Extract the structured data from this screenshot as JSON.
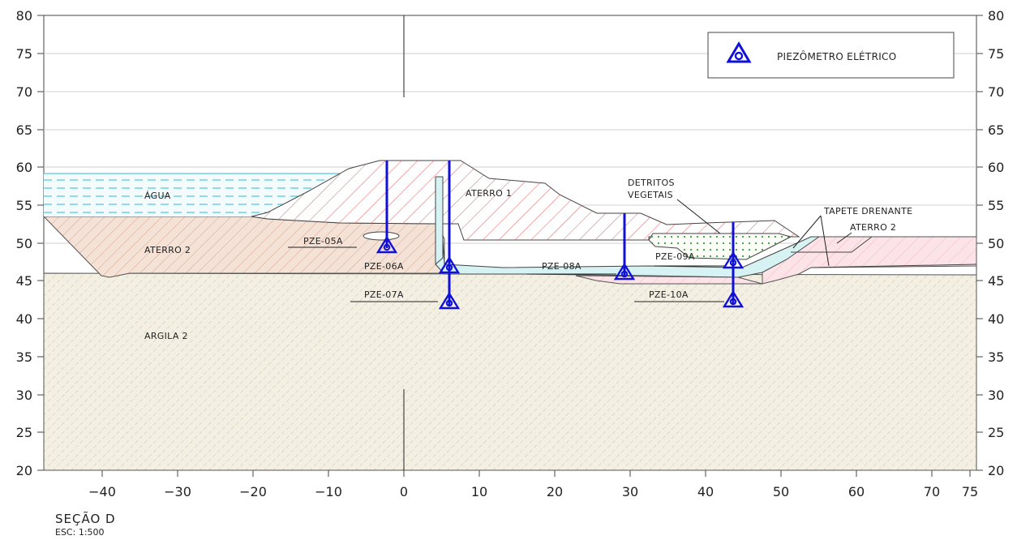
{
  "axes": {
    "y_ticks": [
      "80",
      "75",
      "70",
      "65",
      "60",
      "55",
      "50",
      "45",
      "40",
      "35",
      "30",
      "25",
      "20"
    ],
    "x_ticks": [
      "−40",
      "−30",
      "−20",
      "−10",
      "0",
      "10",
      "20",
      "30",
      "40",
      "50",
      "60",
      "70",
      "75"
    ]
  },
  "legend": {
    "label": "PIEZÔMETRO ELÉTRICO"
  },
  "materials": {
    "agua": "ÁGUA",
    "aterro1": "ATERRO 1",
    "aterro2_left": "ATERRO 2",
    "aterro2_right": "ATERRO 2",
    "argila2": "ARGILA 2",
    "detritos_line1": "DETRITOS",
    "detritos_line2": "VEGETAIS",
    "tapete": "TAPETE DRENANTE"
  },
  "piezometers": [
    "PZE-05A",
    "PZE-06A",
    "PZE-07A",
    "PZE-08A",
    "PZE-09A",
    "PZE-10A"
  ],
  "section": {
    "title": "SEÇÃO D",
    "scale": "ESC: 1:500"
  },
  "colors": {
    "piezometer": "#1010d8",
    "aterro1_hatch": "#e06060",
    "aterro2_fill": "#f3e4da",
    "argila_fill": "#f0ece0",
    "water_line": "#55c8e0",
    "drain_fill": "#d6f2f2",
    "pink_fill": "#fbe0e6"
  }
}
